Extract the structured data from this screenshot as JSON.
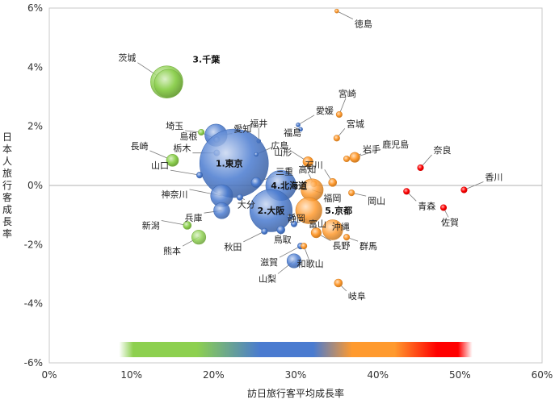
{
  "chart_data": {
    "type": "scatter",
    "xlabel": "訪日旅行客平均成長率",
    "ylabel": "日本人旅行客成長率",
    "xlim": [
      0,
      60
    ],
    "ylim": [
      -6,
      6
    ],
    "x_ticks": [
      "0%",
      "10%",
      "20%",
      "30%",
      "40%",
      "50%",
      "60%"
    ],
    "y_ticks": [
      "6%",
      "4%",
      "2%",
      "0%",
      "-2%",
      "-4%",
      "-6%"
    ],
    "grid": "y-zero-line",
    "color_scale": [
      "#8dd04f",
      "#4a7bd0",
      "#ff9a2e",
      "#ff0000"
    ],
    "points": [
      {
        "label": "徳島",
        "x": 35,
        "y": 5.9,
        "size": 2,
        "color": "#ff9a2e"
      },
      {
        "label": "茨城",
        "x": 14.3,
        "y": 3.5,
        "size": 16,
        "color": "#8dd04f"
      },
      {
        "label": "3.千葉",
        "x": 14.5,
        "y": 3.45,
        "size": 14,
        "color": "#8dd04f"
      },
      {
        "label": "宮崎",
        "x": 35.3,
        "y": 2.4,
        "size": 3,
        "color": "#ff9a2e"
      },
      {
        "label": "埼玉",
        "x": 18.5,
        "y": 1.8,
        "size": 3,
        "color": "#8dd04f"
      },
      {
        "label": "愛知",
        "x": 20.3,
        "y": 1.7,
        "size": 11,
        "color": "#4a7bd0"
      },
      {
        "label": "福井",
        "x": 25.5,
        "y": 1.5,
        "size": 2,
        "color": "#4a7bd0"
      },
      {
        "label": "愛媛",
        "x": 30.3,
        "y": 2.05,
        "size": 2,
        "color": "#4a7bd0"
      },
      {
        "label": "宮城",
        "x": 35,
        "y": 1.6,
        "size": 3,
        "color": "#ff9a2e"
      },
      {
        "label": "福島",
        "x": 30.6,
        "y": 1.9,
        "size": 2,
        "color": "#4a7bd0"
      },
      {
        "label": "島根",
        "x": 20.4,
        "y": 1.55,
        "size": 3,
        "color": "#4a7bd0"
      },
      {
        "label": "長崎",
        "x": 15,
        "y": 0.85,
        "size": 6,
        "color": "#8dd04f"
      },
      {
        "label": "栃木",
        "x": 20.4,
        "y": 1.1,
        "size": 3,
        "color": "#4a7bd0"
      },
      {
        "label": "1.東京",
        "x": 22.5,
        "y": 0.75,
        "size": 34,
        "color": "#4a7bd0"
      },
      {
        "label": "山形",
        "x": 25.2,
        "y": 1.05,
        "size": 2,
        "color": "#4a7bd0"
      },
      {
        "label": "広島",
        "x": 31.5,
        "y": 0.8,
        "size": 5,
        "color": "#ff9a2e"
      },
      {
        "label": "鹿児島",
        "x": 37.2,
        "y": 0.95,
        "size": 5,
        "color": "#ff9a2e"
      },
      {
        "label": "奈良",
        "x": 45.2,
        "y": 0.6,
        "size": 3,
        "color": "#ff0000"
      },
      {
        "label": "三重",
        "x": 25.2,
        "y": 0.1,
        "size": 5,
        "color": "#4a7bd0"
      },
      {
        "label": "高知",
        "x": 32.2,
        "y": 0.05,
        "size": 3,
        "color": "#ff9a2e"
      },
      {
        "label": "石川",
        "x": 34.5,
        "y": 0.1,
        "size": 4,
        "color": "#ff9a2e"
      },
      {
        "label": "岩手",
        "x": 36.2,
        "y": 0.9,
        "size": 3,
        "color": "#ff9a2e"
      },
      {
        "label": "香川",
        "x": 50.5,
        "y": -0.15,
        "size": 3,
        "color": "#ff0000"
      },
      {
        "label": "山口",
        "x": 18.3,
        "y": 0.35,
        "size": 3,
        "color": "#4a7bd0"
      },
      {
        "label": "4.北海道",
        "x": 28.2,
        "y": 0.0,
        "size": 15,
        "color": "#4a7bd0"
      },
      {
        "label": "福岡",
        "x": 32,
        "y": -0.15,
        "size": 11,
        "color": "#ff9a2e"
      },
      {
        "label": "神奈川",
        "x": 21,
        "y": -0.35,
        "size": 11,
        "color": "#4a7bd0"
      },
      {
        "label": "大分",
        "x": 23.2,
        "y": -0.4,
        "size": 3,
        "color": "#4a7bd0"
      },
      {
        "label": "岡山",
        "x": 36.8,
        "y": -0.25,
        "size": 3,
        "color": "#ff9a2e"
      },
      {
        "label": "青森",
        "x": 43.5,
        "y": -0.2,
        "size": 3,
        "color": "#ff0000"
      },
      {
        "label": "佐賀",
        "x": 48,
        "y": -0.75,
        "size": 3,
        "color": "#ff0000"
      },
      {
        "label": "2.大阪",
        "x": 27,
        "y": -0.85,
        "size": 21,
        "color": "#4a7bd0"
      },
      {
        "label": "5.京都",
        "x": 31.6,
        "y": -0.85,
        "size": 13,
        "color": "#ff9a2e"
      },
      {
        "label": "静岡",
        "x": 29.3,
        "y": -1.05,
        "size": 3,
        "color": "#4a7bd0"
      },
      {
        "label": "新潟",
        "x": 16.8,
        "y": -1.35,
        "size": 4,
        "color": "#8dd04f"
      },
      {
        "label": "兵庫",
        "x": 21,
        "y": -0.85,
        "size": 8,
        "color": "#4a7bd0"
      },
      {
        "label": "富山",
        "x": 29.8,
        "y": -1.3,
        "size": 3,
        "color": "#4a7bd0"
      },
      {
        "label": "沖縄",
        "x": 34.5,
        "y": -1.5,
        "size": 10,
        "color": "#ff9a2e"
      },
      {
        "label": "秋田",
        "x": 26.2,
        "y": -1.55,
        "size": 3,
        "color": "#4a7bd0"
      },
      {
        "label": "鳥取",
        "x": 28.2,
        "y": -1.5,
        "size": 4,
        "color": "#4a7bd0"
      },
      {
        "label": "群馬",
        "x": 36.2,
        "y": -1.75,
        "size": 3,
        "color": "#ff9a2e"
      },
      {
        "label": "熊本",
        "x": 18.2,
        "y": -1.75,
        "size": 7,
        "color": "#8dd04f"
      },
      {
        "label": "滋賀",
        "x": 30.6,
        "y": -2.05,
        "size": 3,
        "color": "#4a7bd0"
      },
      {
        "label": "長野",
        "x": 32.5,
        "y": -1.6,
        "size": 5,
        "color": "#ff9a2e"
      },
      {
        "label": "和歌山",
        "x": 31,
        "y": -2.05,
        "size": 3,
        "color": "#ff9a2e"
      },
      {
        "label": "山梨",
        "x": 29.8,
        "y": -2.55,
        "size": 7,
        "color": "#4a7bd0"
      },
      {
        "label": "岐阜",
        "x": 35.2,
        "y": -3.3,
        "size": 4,
        "color": "#ff9a2e"
      }
    ]
  }
}
